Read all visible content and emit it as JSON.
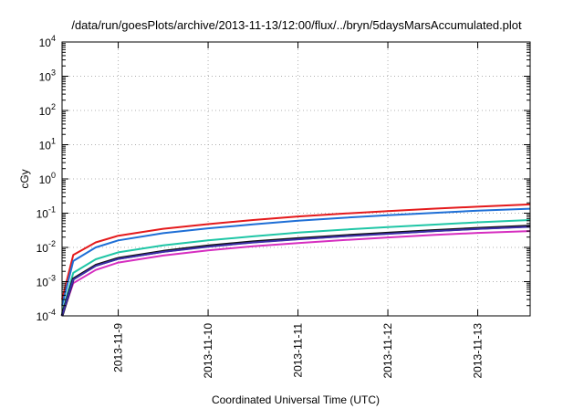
{
  "chart_data": {
    "type": "line",
    "title": "/data/run/goesPlots/archive/2013-11-13/12:00/flux/../bryn/5daysMarsAccumulated.plot",
    "xlabel": "Coordinated Universal Time (UTC)",
    "ylabel": "cGy",
    "x_axis": {
      "type": "time",
      "range": [
        "2013-11-08T09:00",
        "2013-11-13T14:00"
      ],
      "ticks": [
        "2013-11-9",
        "2013-11-10",
        "2013-11-11",
        "2013-11-12",
        "2013-11-13"
      ]
    },
    "y_axis": {
      "scale": "log",
      "range": [
        0.0001,
        10000
      ],
      "ticks": [
        {
          "base": "10",
          "exp": "-4"
        },
        {
          "base": "10",
          "exp": "-3"
        },
        {
          "base": "10",
          "exp": "-2"
        },
        {
          "base": "10",
          "exp": "-1"
        },
        {
          "base": "10",
          "exp": "0"
        },
        {
          "base": "10",
          "exp": "1"
        },
        {
          "base": "10",
          "exp": "2"
        },
        {
          "base": "10",
          "exp": "3"
        },
        {
          "base": "10",
          "exp": "4"
        }
      ]
    },
    "grid": true,
    "legend": "none",
    "x": [
      "2013-11-08T09:00",
      "2013-11-08T12:00",
      "2013-11-08T18:00",
      "2013-11-09T00:00",
      "2013-11-09T12:00",
      "2013-11-10T00:00",
      "2013-11-10T12:00",
      "2013-11-11T00:00",
      "2013-11-11T12:00",
      "2013-11-12T00:00",
      "2013-11-12T12:00",
      "2013-11-13T00:00",
      "2013-11-13T14:00"
    ],
    "series": [
      {
        "color": "#e41a1c",
        "values": [
          0.0003,
          0.006,
          0.014,
          0.022,
          0.035,
          0.048,
          0.063,
          0.08,
          0.097,
          0.115,
          0.135,
          0.155,
          0.18
        ]
      },
      {
        "color": "#1f6fd6",
        "values": [
          0.0002,
          0.004,
          0.01,
          0.016,
          0.026,
          0.036,
          0.047,
          0.06,
          0.073,
          0.087,
          0.102,
          0.118,
          0.135
        ]
      },
      {
        "color": "#1fc6a6",
        "values": [
          0.00012,
          0.0018,
          0.0045,
          0.0072,
          0.0115,
          0.016,
          0.021,
          0.027,
          0.033,
          0.039,
          0.046,
          0.054,
          0.063
        ]
      },
      {
        "color": "#111111",
        "values": [
          0.0001,
          0.0012,
          0.003,
          0.0048,
          0.0077,
          0.011,
          0.0145,
          0.018,
          0.022,
          0.026,
          0.031,
          0.036,
          0.042
        ]
      },
      {
        "color": "#3c2ea8",
        "values": [
          0.0001,
          0.00115,
          0.0029,
          0.0046,
          0.0074,
          0.0105,
          0.0139,
          0.0173,
          0.021,
          0.025,
          0.0297,
          0.0345,
          0.04
        ]
      },
      {
        "color": "#d62ec0",
        "values": [
          0.0001,
          0.0009,
          0.0022,
          0.0036,
          0.0058,
          0.0082,
          0.0108,
          0.0134,
          0.0163,
          0.0195,
          0.023,
          0.0265,
          0.03
        ]
      }
    ]
  }
}
